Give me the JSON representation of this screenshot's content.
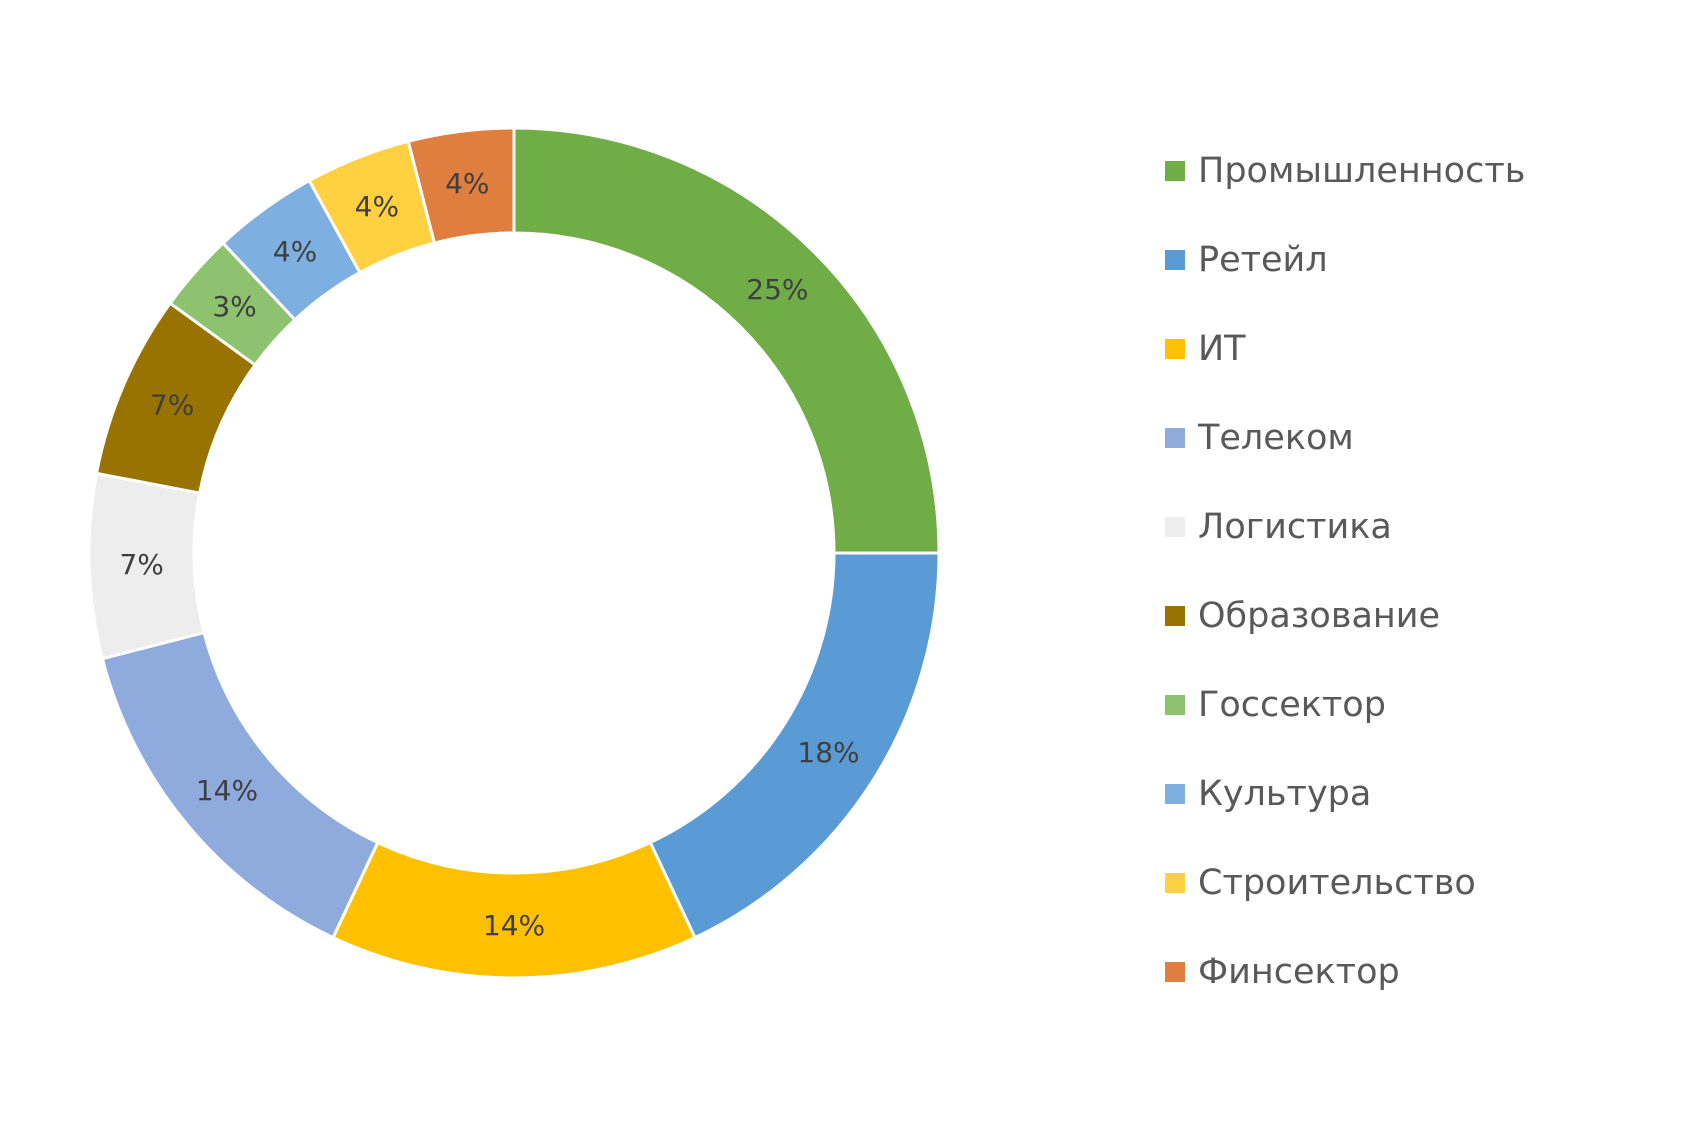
{
  "chart_data": {
    "type": "pie",
    "variant": "doughnut",
    "title": "",
    "categories": [
      "Промышленность",
      "Ретейл",
      "ИТ",
      "Телеком",
      "Логистика",
      "Образование",
      "Госсектор",
      "Культура",
      "Строительство",
      "Финсектор"
    ],
    "values": [
      25,
      18,
      14,
      14,
      7,
      7,
      3,
      4,
      4,
      4
    ],
    "labels": [
      "25%",
      "18%",
      "14%",
      "14%",
      "7%",
      "7%",
      "3%",
      "4%",
      "4%",
      "4%"
    ],
    "colors": [
      "#70AD47",
      "#5B9BD5",
      "#FFC000",
      "#8FAADC",
      "#EDEDED",
      "#997300",
      "#8DC26F",
      "#7DAFE0",
      "#FFD03F",
      "#DF7E3F"
    ],
    "legend_position": "right",
    "start_direction": "top",
    "rotation": "clockwise"
  }
}
